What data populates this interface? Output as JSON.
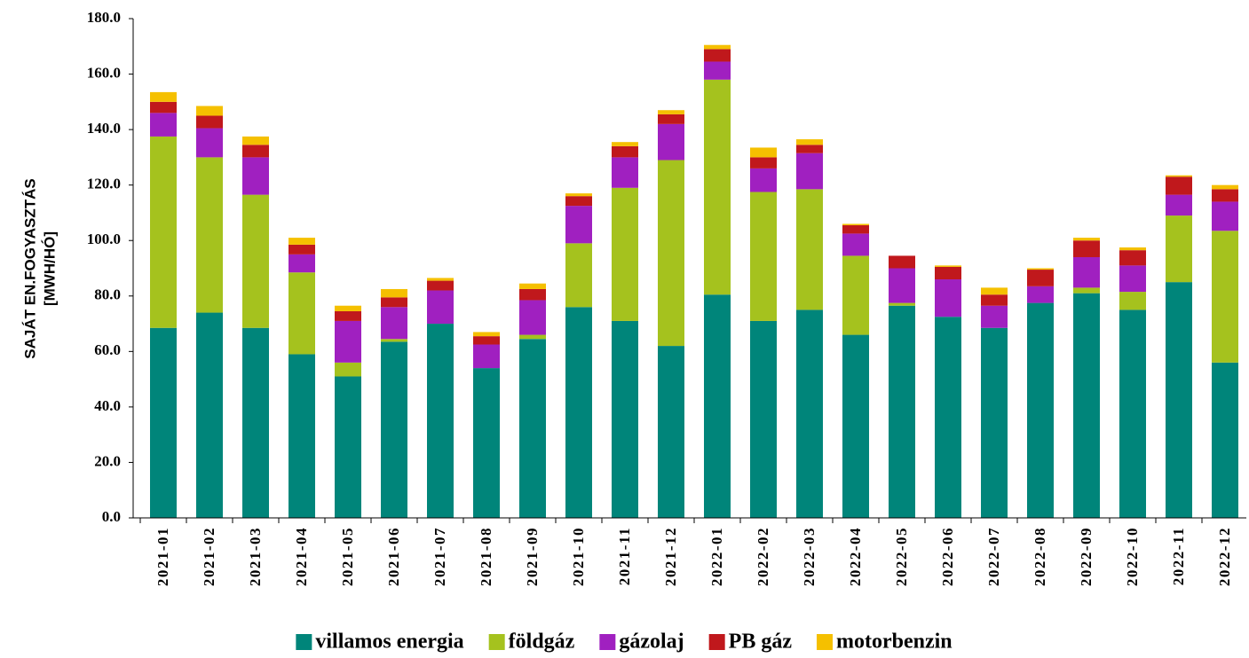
{
  "chart_data": {
    "type": "stacked_bar",
    "y_label": [
      "SAJÁT EN.FOGYASZTÁS",
      "[MWH/HÓ]"
    ],
    "categories": [
      "2021-01",
      "2021-02",
      "2021-03",
      "2021-04",
      "2021-05",
      "2021-06",
      "2021-07",
      "2021-08",
      "2021-09",
      "2021-10",
      "2021-11",
      "2021-12",
      "2022-01",
      "2022-02",
      "2022-03",
      "2022-04",
      "2022-05",
      "2022-06",
      "2022-07",
      "2022-08",
      "2022-09",
      "2022-10",
      "2022-11",
      "2022-12"
    ],
    "series": [
      {
        "name": "villamos energia",
        "color": "#00857a",
        "values": [
          68.5,
          74,
          68.5,
          59,
          51,
          63.5,
          70,
          54,
          64.5,
          76,
          71,
          62,
          80.5,
          71,
          75,
          66,
          76.5,
          72.5,
          68.5,
          77.5,
          81,
          75,
          85,
          56
        ]
      },
      {
        "name": "földgáz",
        "color": "#a5c21e",
        "values": [
          69,
          56,
          48,
          29.5,
          5,
          1,
          0,
          0,
          1.5,
          23,
          48,
          67,
          77.5,
          46.5,
          43.5,
          28.5,
          1,
          0,
          0,
          0,
          2,
          6.5,
          24,
          47.5
        ]
      },
      {
        "name": "gázolaj",
        "color": "#a020c0",
        "values": [
          8.5,
          10.5,
          13.5,
          6.5,
          15,
          11.5,
          12,
          8.5,
          12.5,
          13.5,
          11,
          13,
          6.5,
          8.5,
          13,
          8,
          12.5,
          13.5,
          8,
          6,
          11,
          9.5,
          7.5,
          10.5
        ]
      },
      {
        "name": "PB gáz",
        "color": "#c0181c",
        "values": [
          4,
          4.5,
          4.5,
          3.5,
          3.5,
          3.5,
          3.5,
          3,
          4,
          3.5,
          4,
          3.5,
          4.5,
          4,
          3,
          3,
          4.5,
          4.5,
          4,
          6,
          6,
          5.5,
          6.5,
          4.5
        ]
      },
      {
        "name": "motorbenzin",
        "color": "#f5c000",
        "values": [
          3.5,
          3.5,
          3,
          2.5,
          2,
          3,
          1,
          1.5,
          2,
          1,
          1.5,
          1.5,
          1.5,
          3.5,
          2,
          0.5,
          0,
          0.5,
          2.5,
          0.5,
          1,
          1,
          0.5,
          1.5
        ]
      }
    ],
    "ylim": [
      0,
      180
    ],
    "yticks": [
      {
        "value": 0,
        "label": "0.0"
      },
      {
        "value": 20,
        "label": "20.0"
      },
      {
        "value": 40,
        "label": "40.0"
      },
      {
        "value": 60,
        "label": "60.0"
      },
      {
        "value": 80,
        "label": "80.0"
      },
      {
        "value": 100,
        "label": "100.0"
      },
      {
        "value": 120,
        "label": "120.0"
      },
      {
        "value": 140,
        "label": "140.0"
      },
      {
        "value": 160,
        "label": "160.0"
      },
      {
        "value": 180,
        "label": "180.0"
      }
    ],
    "grid": false,
    "legend": "bottom"
  }
}
